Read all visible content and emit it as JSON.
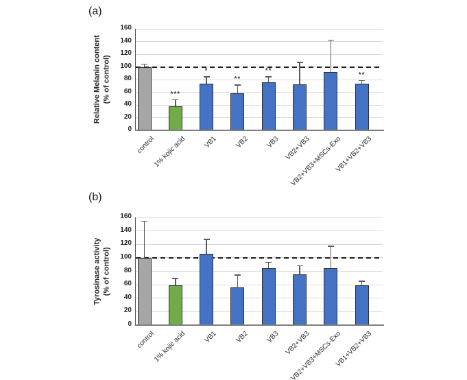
{
  "panels": [
    {
      "label": "(a)",
      "ylabel": [
        "Relative Melanin content",
        "(% of control)"
      ]
    },
    {
      "label": "(b)",
      "ylabel": [
        "Tyrosinase activity",
        "(% of control)"
      ]
    }
  ],
  "colors": {
    "bar_gray": "#a6a6a6",
    "bar_green": "#70ad47",
    "bar_blue": "#4472c4",
    "bar_border": "#2e2e2e",
    "error_bar": "#595959",
    "gridline": "#d9d9d9",
    "axis_line": "#595959",
    "baseline": "#7f7f7f",
    "ref_line": "#1a1a1a",
    "text": "#262626"
  },
  "chart_data": [
    {
      "type": "bar",
      "panel": "(a)",
      "title": "",
      "xlabel": "",
      "ylabel": "Relative Melanin content (% of control)",
      "categories": [
        "control",
        "1% kojic acid",
        "VB1",
        "VB2",
        "VB3",
        "VB2+VB3",
        "VB2+VB3+MSCs-Exo",
        "VB1+VB2+VB3"
      ],
      "values": [
        100,
        38,
        74,
        58,
        76,
        72,
        92,
        73
      ],
      "errors_upper": [
        4,
        10,
        10,
        13,
        8,
        35,
        50,
        5
      ],
      "significance": [
        "",
        "***",
        "*",
        "**",
        "**",
        "",
        "",
        "**"
      ],
      "bar_colors": [
        "gray",
        "green",
        "blue",
        "blue",
        "blue",
        "blue",
        "blue",
        "blue"
      ],
      "ylim": [
        0,
        160
      ],
      "ytick_step": 20,
      "ref_line_y": 100,
      "grid": true,
      "legend": "none"
    },
    {
      "type": "bar",
      "panel": "(b)",
      "title": "",
      "xlabel": "",
      "ylabel": "Tyrosinase activity (% of control)",
      "categories": [
        "control",
        "1% kojic acid",
        "VB1",
        "VB2",
        "VB3",
        "VB2+VB3",
        "VB2+VB3+MSCs-Exo",
        "VB1+VB2+VB3"
      ],
      "values": [
        100,
        59,
        106,
        56,
        85,
        75,
        85,
        59
      ],
      "errors_upper": [
        54,
        10,
        21,
        18,
        8,
        13,
        32,
        6
      ],
      "significance": [
        "",
        "",
        "",
        "",
        "",
        "",
        "",
        ""
      ],
      "bar_colors": [
        "gray",
        "green",
        "blue",
        "blue",
        "blue",
        "blue",
        "blue",
        "blue"
      ],
      "ylim": [
        0,
        160
      ],
      "ytick_step": 20,
      "ref_line_y": 100,
      "grid": true,
      "legend": "none"
    }
  ]
}
